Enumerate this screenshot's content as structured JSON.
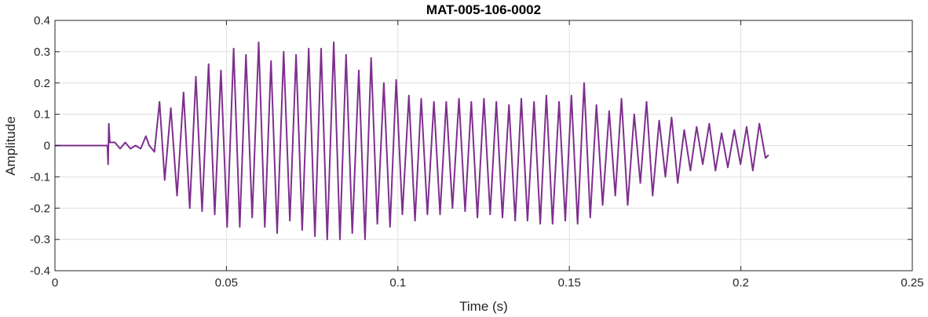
{
  "chart_data": {
    "type": "line",
    "title": "MAT-005-106-0002",
    "xlabel": "Time (s)",
    "ylabel": "Amplitude",
    "xlim": [
      0,
      0.25
    ],
    "ylim": [
      -0.4,
      0.4
    ],
    "xticks": [
      0,
      0.05,
      0.1,
      0.15,
      0.2,
      0.25
    ],
    "xtick_labels": [
      "0",
      "0.05",
      "0.1",
      "0.15",
      "0.2",
      "0.25"
    ],
    "yticks": [
      -0.4,
      -0.3,
      -0.2,
      -0.1,
      0,
      0.1,
      0.2,
      0.3,
      0.4
    ],
    "ytick_labels": [
      "-0.4",
      "-0.3",
      "-0.2",
      "-0.1",
      "0",
      "0.1",
      "0.2",
      "0.3",
      "0.4"
    ],
    "grid": true,
    "line_color": "#7E2F8E",
    "series": [
      {
        "x": [
          0,
          0.0153,
          0.0155,
          0.0157,
          0.016,
          0.0175,
          0.019,
          0.0205,
          0.022,
          0.0235,
          0.025,
          0.0265,
          0.0275,
          0.029,
          0.0305,
          0.032,
          0.0338,
          0.0356,
          0.0375,
          0.0393,
          0.0411,
          0.0429,
          0.0448,
          0.0466,
          0.0484,
          0.0502,
          0.0521,
          0.0539,
          0.0557,
          0.0575,
          0.0594,
          0.0612,
          0.063,
          0.0648,
          0.0667,
          0.0685,
          0.0703,
          0.0721,
          0.074,
          0.0758,
          0.0776,
          0.0794,
          0.0813,
          0.0831,
          0.0849,
          0.0867,
          0.0886,
          0.0904,
          0.0922,
          0.094,
          0.0959,
          0.0977,
          0.0995,
          0.1013,
          0.1032,
          0.105,
          0.1068,
          0.1086,
          0.1105,
          0.1123,
          0.1141,
          0.1159,
          0.1178,
          0.1196,
          0.1214,
          0.1232,
          0.1251,
          0.1269,
          0.1287,
          0.1305,
          0.1324,
          0.1342,
          0.136,
          0.1378,
          0.1397,
          0.1415,
          0.1433,
          0.1451,
          0.147,
          0.1488,
          0.1506,
          0.1524,
          0.1543,
          0.1561,
          0.1579,
          0.1597,
          0.1616,
          0.1634,
          0.1652,
          0.167,
          0.1689,
          0.1707,
          0.1725,
          0.1743,
          0.1762,
          0.178,
          0.1798,
          0.1816,
          0.1835,
          0.1853,
          0.1871,
          0.1889,
          0.1908,
          0.1926,
          0.1944,
          0.1962,
          0.1981,
          0.1999,
          0.2017,
          0.2035,
          0.2054,
          0.2072,
          0.2081
        ],
        "y": [
          0,
          0,
          -0.06,
          0.07,
          0.01,
          0.01,
          -0.01,
          0.01,
          -0.01,
          0.0,
          -0.01,
          0.03,
          0.0,
          -0.02,
          0.14,
          -0.11,
          0.12,
          -0.16,
          0.17,
          -0.2,
          0.22,
          -0.21,
          0.26,
          -0.22,
          0.24,
          -0.26,
          0.31,
          -0.26,
          0.29,
          -0.23,
          0.33,
          -0.26,
          0.27,
          -0.28,
          0.3,
          -0.24,
          0.29,
          -0.27,
          0.31,
          -0.29,
          0.31,
          -0.3,
          0.33,
          -0.3,
          0.29,
          -0.28,
          0.24,
          -0.3,
          0.28,
          -0.25,
          0.2,
          -0.26,
          0.21,
          -0.22,
          0.16,
          -0.24,
          0.15,
          -0.22,
          0.14,
          -0.22,
          0.14,
          -0.2,
          0.15,
          -0.21,
          0.14,
          -0.23,
          0.15,
          -0.22,
          0.14,
          -0.23,
          0.13,
          -0.24,
          0.15,
          -0.24,
          0.14,
          -0.25,
          0.16,
          -0.25,
          0.14,
          -0.24,
          0.16,
          -0.25,
          0.2,
          -0.23,
          0.13,
          -0.19,
          0.11,
          -0.16,
          0.15,
          -0.19,
          0.1,
          -0.12,
          0.14,
          -0.16,
          0.08,
          -0.1,
          0.09,
          -0.12,
          0.05,
          -0.08,
          0.06,
          -0.06,
          0.07,
          -0.08,
          0.04,
          -0.07,
          0.05,
          -0.06,
          0.06,
          -0.08,
          0.07,
          -0.04,
          -0.03
        ]
      }
    ]
  }
}
